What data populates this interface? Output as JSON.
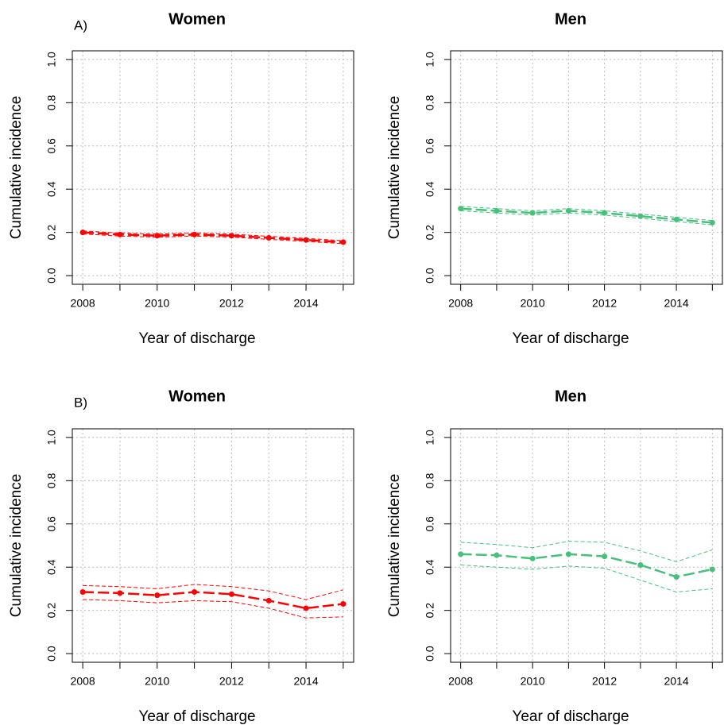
{
  "chart_data": [
    {
      "type": "line",
      "panel_label": "A)",
      "title": "Women",
      "xlabel": "Year of discharge",
      "ylabel": "Cumulative incidence",
      "x": [
        2008,
        2009,
        2010,
        2011,
        2012,
        2013,
        2014,
        2015
      ],
      "series": [
        {
          "color": "#ff0000",
          "line_style": "longdash",
          "markers": true,
          "values": [
            0.2,
            0.19,
            0.185,
            0.19,
            0.185,
            0.175,
            0.165,
            0.155
          ]
        },
        {
          "color": "#ff0000",
          "line_style": "dashed",
          "markers": false,
          "values": [
            0.193,
            0.183,
            0.178,
            0.183,
            0.178,
            0.168,
            0.158,
            0.148
          ]
        },
        {
          "color": "#ff0000",
          "line_style": "dashed",
          "markers": false,
          "values": [
            0.207,
            0.197,
            0.192,
            0.197,
            0.192,
            0.182,
            0.172,
            0.162
          ]
        }
      ],
      "xlim": [
        2007.72,
        2015.28
      ],
      "xticks": [
        2008,
        2010,
        2012,
        2014
      ],
      "ylim": [
        -0.04,
        1.04
      ],
      "yticks": [
        {
          "value": 0,
          "label": "0.0"
        },
        0.2,
        0.4,
        0.6,
        0.8,
        {
          "value": 1,
          "label": "1.0"
        }
      ],
      "grid": true
    },
    {
      "type": "line",
      "title": "Men",
      "xlabel": "Year of discharge",
      "ylabel": "Cumulative incidence",
      "x": [
        2008,
        2009,
        2010,
        2011,
        2012,
        2013,
        2014,
        2015
      ],
      "series": [
        {
          "color": "#45c17a",
          "line_style": "longdash",
          "markers": true,
          "values": [
            0.31,
            0.3,
            0.29,
            0.3,
            0.29,
            0.275,
            0.26,
            0.245
          ]
        },
        {
          "color": "#45c17a",
          "line_style": "dashed",
          "markers": false,
          "values": [
            0.3,
            0.29,
            0.28,
            0.29,
            0.28,
            0.265,
            0.25,
            0.235
          ]
        },
        {
          "color": "#45c17a",
          "line_style": "dashed",
          "markers": false,
          "values": [
            0.32,
            0.31,
            0.3,
            0.31,
            0.3,
            0.285,
            0.27,
            0.255
          ]
        }
      ],
      "xlim": [
        2007.72,
        2015.28
      ],
      "xticks": [
        2008,
        2010,
        2012,
        2014
      ],
      "ylim": [
        -0.04,
        1.04
      ],
      "yticks": [
        {
          "value": 0,
          "label": "0.0"
        },
        0.2,
        0.4,
        0.6,
        0.8,
        {
          "value": 1,
          "label": "1.0"
        }
      ],
      "grid": true
    },
    {
      "type": "line",
      "panel_label": "B)",
      "title": "Women",
      "xlabel": "Year of discharge",
      "ylabel": "Cumulative incidence",
      "x": [
        2008,
        2009,
        2010,
        2011,
        2012,
        2013,
        2014,
        2015
      ],
      "series": [
        {
          "color": "#ff0000",
          "line_style": "longdash",
          "markers": true,
          "values": [
            0.285,
            0.28,
            0.27,
            0.285,
            0.275,
            0.245,
            0.21,
            0.23
          ]
        },
        {
          "color": "#ff0000",
          "line_style": "dashed",
          "markers": false,
          "values": [
            0.25,
            0.245,
            0.235,
            0.245,
            0.24,
            0.21,
            0.165,
            0.17
          ]
        },
        {
          "color": "#ff0000",
          "line_style": "dashed",
          "markers": false,
          "values": [
            0.315,
            0.31,
            0.3,
            0.32,
            0.31,
            0.29,
            0.25,
            0.295
          ]
        }
      ],
      "xlim": [
        2007.72,
        2015.28
      ],
      "xticks": [
        2008,
        2010,
        2012,
        2014
      ],
      "ylim": [
        -0.04,
        1.04
      ],
      "yticks": [
        {
          "value": 0,
          "label": "0.0"
        },
        0.2,
        0.4,
        0.6,
        0.8,
        {
          "value": 1,
          "label": "1.0"
        }
      ],
      "grid": true
    },
    {
      "type": "line",
      "title": "Men",
      "xlabel": "Year of discharge",
      "ylabel": "Cumulative incidence",
      "x": [
        2008,
        2009,
        2010,
        2011,
        2012,
        2013,
        2014,
        2015
      ],
      "series": [
        {
          "color": "#45c17a",
          "line_style": "longdash",
          "markers": true,
          "values": [
            0.46,
            0.455,
            0.44,
            0.46,
            0.45,
            0.41,
            0.355,
            0.39
          ]
        },
        {
          "color": "#45c17a",
          "line_style": "dashed",
          "markers": false,
          "values": [
            0.41,
            0.4,
            0.39,
            0.405,
            0.395,
            0.34,
            0.285,
            0.3
          ]
        },
        {
          "color": "#45c17a",
          "line_style": "dashed",
          "markers": false,
          "values": [
            0.515,
            0.505,
            0.49,
            0.52,
            0.515,
            0.475,
            0.425,
            0.48
          ]
        }
      ],
      "xlim": [
        2007.72,
        2015.28
      ],
      "xticks": [
        2008,
        2010,
        2012,
        2014
      ],
      "ylim": [
        -0.04,
        1.04
      ],
      "yticks": [
        {
          "value": 0,
          "label": "0.0"
        },
        0.2,
        0.4,
        0.6,
        0.8,
        {
          "value": 1,
          "label": "1.0"
        }
      ],
      "grid": true
    }
  ]
}
